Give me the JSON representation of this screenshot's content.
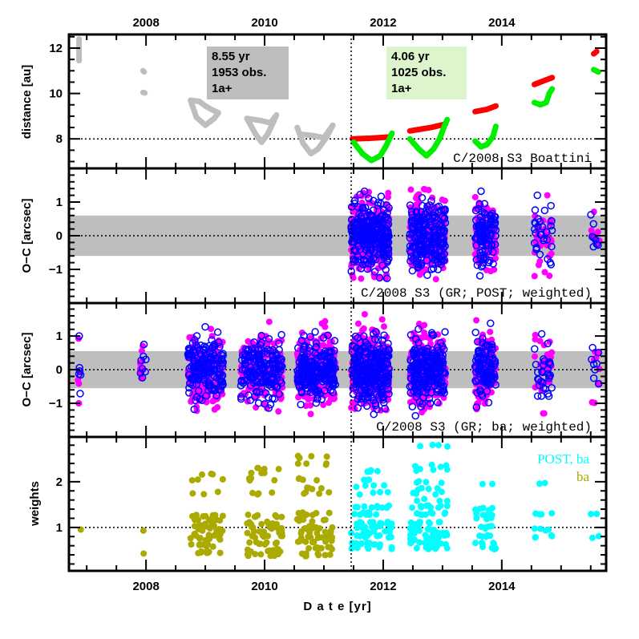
{
  "chart_data": [
    {
      "type": "scatter",
      "panel": "distance",
      "ylabel": "distance [au]",
      "ylim": [
        6.7,
        12.6
      ],
      "yticks": [
        8,
        10,
        12
      ],
      "xlim": [
        2006.7,
        2015.76
      ],
      "xticks_top": [
        "2008",
        "2010",
        "2012",
        "2014"
      ],
      "reference_line_y": 8,
      "vertical_divider_x": 2011.46,
      "annotation": "C/2008 S3 Boattini",
      "info_boxes": [
        {
          "lines": [
            "8.55 yr",
            "1953 obs.",
            "1a+"
          ],
          "color": "#bebebe"
        },
        {
          "lines": [
            "4.06 yr",
            "1025 obs.",
            "1a+"
          ],
          "color": "#ddf5cc"
        }
      ],
      "series": [
        {
          "name": "heliocentric distance (pre-split)",
          "color": "#bebebe",
          "segments": [
            [
              [
                2006.87,
                12.4
              ],
              [
                2006.87,
                11.45
              ]
            ],
            [
              [
                2007.95,
                11.0
              ],
              [
                2007.97,
                10.95
              ]
            ],
            [
              [
                2007.95,
                10.05
              ],
              [
                2007.98,
                10.02
              ]
            ],
            [
              [
                2008.75,
                9.7
              ],
              [
                2008.85,
                8.95
              ],
              [
                2009.0,
                8.6
              ],
              [
                2009.15,
                8.9
              ],
              [
                2009.22,
                9.15
              ],
              [
                2009.1,
                9.3
              ],
              [
                2009.0,
                9.45
              ],
              [
                2008.9,
                9.65
              ],
              [
                2008.75,
                9.7
              ]
            ],
            [
              [
                2009.7,
                8.9
              ],
              [
                2009.85,
                8.2
              ],
              [
                2009.95,
                7.85
              ],
              [
                2010.05,
                8.2
              ],
              [
                2010.15,
                8.75
              ],
              [
                2010.2,
                9.05
              ],
              [
                2010.1,
                8.7
              ],
              [
                2009.95,
                8.8
              ],
              [
                2009.7,
                8.9
              ]
            ],
            [
              [
                2010.55,
                8.5
              ],
              [
                2010.65,
                7.8
              ],
              [
                2010.78,
                7.35
              ],
              [
                2010.9,
                7.55
              ],
              [
                2011.05,
                8.1
              ],
              [
                2011.15,
                8.6
              ],
              [
                2011.0,
                8.05
              ],
              [
                2010.8,
                8.15
              ],
              [
                2010.6,
                8.2
              ]
            ]
          ]
        },
        {
          "name": "heliocentric distance (post)",
          "color": "#ff0000",
          "segments": [
            [
              [
                2011.48,
                8.0
              ],
              [
                2011.8,
                8.03
              ],
              [
                2012.1,
                8.08
              ]
            ],
            [
              [
                2012.45,
                8.35
              ],
              [
                2012.8,
                8.5
              ],
              [
                2013.05,
                8.65
              ]
            ],
            [
              [
                2013.55,
                9.2
              ],
              [
                2013.75,
                9.3
              ],
              [
                2013.9,
                9.45
              ]
            ],
            [
              [
                2014.55,
                10.4
              ],
              [
                2014.7,
                10.55
              ],
              [
                2014.85,
                10.7
              ]
            ],
            [
              [
                2015.55,
                11.75
              ],
              [
                2015.6,
                11.85
              ]
            ]
          ]
        },
        {
          "name": "geocentric distance (post)",
          "color": "#00ee00",
          "segments": [
            [
              [
                2011.5,
                7.85
              ],
              [
                2011.65,
                7.35
              ],
              [
                2011.8,
                7.05
              ],
              [
                2011.95,
                7.25
              ],
              [
                2012.05,
                7.7
              ],
              [
                2012.15,
                8.25
              ]
            ],
            [
              [
                2012.45,
                8.0
              ],
              [
                2012.6,
                7.55
              ],
              [
                2012.73,
                7.25
              ],
              [
                2012.85,
                7.55
              ],
              [
                2012.95,
                8.0
              ],
              [
                2013.03,
                8.55
              ],
              [
                2013.08,
                8.85
              ]
            ],
            [
              [
                2013.55,
                7.9
              ],
              [
                2013.65,
                7.65
              ],
              [
                2013.75,
                7.75
              ],
              [
                2013.85,
                8.1
              ],
              [
                2013.9,
                8.55
              ]
            ],
            [
              [
                2014.55,
                9.6
              ],
              [
                2014.65,
                9.5
              ],
              [
                2014.75,
                9.6
              ],
              [
                2014.8,
                10.0
              ],
              [
                2014.85,
                10.2
              ]
            ],
            [
              [
                2015.55,
                11.05
              ],
              [
                2015.63,
                10.95
              ]
            ]
          ]
        }
      ]
    },
    {
      "type": "scatter",
      "panel": "oc-post",
      "ylabel": "O−C [arcsec]",
      "ylim": [
        -2.0,
        2.0
      ],
      "yticks": [
        -1,
        0,
        1
      ],
      "band": [
        -0.6,
        0.6
      ],
      "reference_line_y": 0,
      "annotation": "C/2008 S3 (GR; POST; weighted)",
      "series": [
        {
          "name": "RA residuals",
          "color": "#ff00ff",
          "marker": "filled-circle"
        },
        {
          "name": "Dec residuals",
          "color": "#0000ff",
          "marker": "open-circle"
        }
      ],
      "clusters": [
        {
          "x": [
            2011.46,
            2012.1
          ],
          "n": 260,
          "spread": 0.55,
          "max": 1.7
        },
        {
          "x": [
            2012.45,
            2013.05
          ],
          "n": 220,
          "spread": 0.55,
          "max": 1.6
        },
        {
          "x": [
            2013.55,
            2013.9
          ],
          "n": 110,
          "spread": 0.5,
          "max": 1.5
        },
        {
          "x": [
            2014.55,
            2014.85
          ],
          "n": 30,
          "spread": 0.55,
          "max": 1.2
        },
        {
          "x": [
            2015.5,
            2015.65
          ],
          "n": 8,
          "spread": 0.5,
          "max": 1.2
        }
      ]
    },
    {
      "type": "scatter",
      "panel": "oc-ba",
      "ylabel": "O−C [arcsec]",
      "ylim": [
        -2.0,
        1.98
      ],
      "yticks": [
        -1,
        0,
        1
      ],
      "band": [
        -0.55,
        0.55
      ],
      "reference_line_y": 0,
      "annotation": "C/2008 S3 (GR; ba; weighted)",
      "series": [
        {
          "name": "RA residuals",
          "color": "#ff00ff",
          "marker": "filled-circle"
        },
        {
          "name": "Dec residuals",
          "color": "#0000ff",
          "marker": "open-circle"
        }
      ],
      "clusters": [
        {
          "x": [
            2006.85,
            2006.9
          ],
          "n": 6,
          "spread": 0.8,
          "max": 1.0
        },
        {
          "x": [
            2007.9,
            2008.0
          ],
          "n": 8,
          "spread": 0.4,
          "max": 1.0
        },
        {
          "x": [
            2008.7,
            2009.3
          ],
          "n": 180,
          "spread": 0.5,
          "max": 1.7
        },
        {
          "x": [
            2009.6,
            2010.3
          ],
          "n": 180,
          "spread": 0.5,
          "max": 1.7
        },
        {
          "x": [
            2010.55,
            2011.2
          ],
          "n": 220,
          "spread": 0.5,
          "max": 1.7
        },
        {
          "x": [
            2011.46,
            2012.1
          ],
          "n": 260,
          "spread": 0.55,
          "max": 1.7
        },
        {
          "x": [
            2012.45,
            2013.05
          ],
          "n": 220,
          "spread": 0.55,
          "max": 1.6
        },
        {
          "x": [
            2013.55,
            2013.9
          ],
          "n": 110,
          "spread": 0.5,
          "max": 1.5
        },
        {
          "x": [
            2014.55,
            2014.85
          ],
          "n": 30,
          "spread": 0.55,
          "max": 1.3
        },
        {
          "x": [
            2015.5,
            2015.65
          ],
          "n": 8,
          "spread": 0.5,
          "max": 1.4
        }
      ]
    },
    {
      "type": "scatter",
      "panel": "weights",
      "ylabel": "weights",
      "ylim": [
        0.05,
        2.98
      ],
      "yticks": [
        1,
        2
      ],
      "xticks_bottom": [
        "2008",
        "2010",
        "2012",
        "2014"
      ],
      "xlabel": "D a t e [yr]",
      "reference_line_y": 1,
      "legend": [
        {
          "label": "POST, ba",
          "color": "#00ffff"
        },
        {
          "label": "ba",
          "color": "#aaaa00"
        }
      ],
      "legend_position": "top-right",
      "series": [
        {
          "name": "ba",
          "color": "#aaaa00",
          "clusters": [
            {
              "x": [
                2006.85,
                2006.9
              ],
              "levels": [
                0.95
              ]
            },
            {
              "x": [
                2007.93,
                2007.98
              ],
              "levels": [
                0.42,
                0.95
              ]
            },
            {
              "x": [
                2008.75,
                2009.3
              ],
              "levels": [
                0.45,
                0.6,
                0.75,
                0.85,
                0.95,
                1.05,
                1.15,
                1.25,
                1.75,
                2.05,
                2.15
              ]
            },
            {
              "x": [
                2009.7,
                2010.3
              ],
              "levels": [
                0.4,
                0.5,
                0.65,
                0.8,
                0.9,
                1.0,
                1.1,
                1.25,
                1.75,
                2.05,
                2.2,
                2.28
              ]
            },
            {
              "x": [
                2010.55,
                2011.15
              ],
              "levels": [
                0.4,
                0.55,
                0.7,
                0.8,
                0.9,
                1.0,
                1.15,
                1.3,
                1.75,
                1.85,
                2.05,
                2.4,
                2.55
              ]
            }
          ]
        },
        {
          "name": "POST, ba",
          "color": "#00ffff",
          "clusters": [
            {
              "x": [
                2011.46,
                2012.15
              ],
              "levels": [
                0.55,
                0.65,
                0.8,
                0.9,
                1.0,
                1.1,
                1.3,
                1.45,
                1.75,
                1.9,
                2.05,
                2.25
              ]
            },
            {
              "x": [
                2012.45,
                2013.1
              ],
              "levels": [
                0.55,
                0.65,
                0.75,
                0.85,
                0.95,
                1.1,
                1.3,
                1.45,
                1.6,
                1.75,
                1.85,
                2.0,
                2.25,
                2.35,
                2.8
              ]
            },
            {
              "x": [
                2013.55,
                2013.9
              ],
              "levels": [
                0.55,
                0.65,
                0.8,
                1.0,
                1.2,
                1.3,
                1.4,
                1.95
              ]
            },
            {
              "x": [
                2014.55,
                2014.85
              ],
              "levels": [
                0.8,
                0.95,
                1.3,
                1.95
              ]
            },
            {
              "x": [
                2015.5,
                2015.65
              ],
              "levels": [
                0.8,
                1.3
              ]
            }
          ]
        }
      ]
    }
  ]
}
